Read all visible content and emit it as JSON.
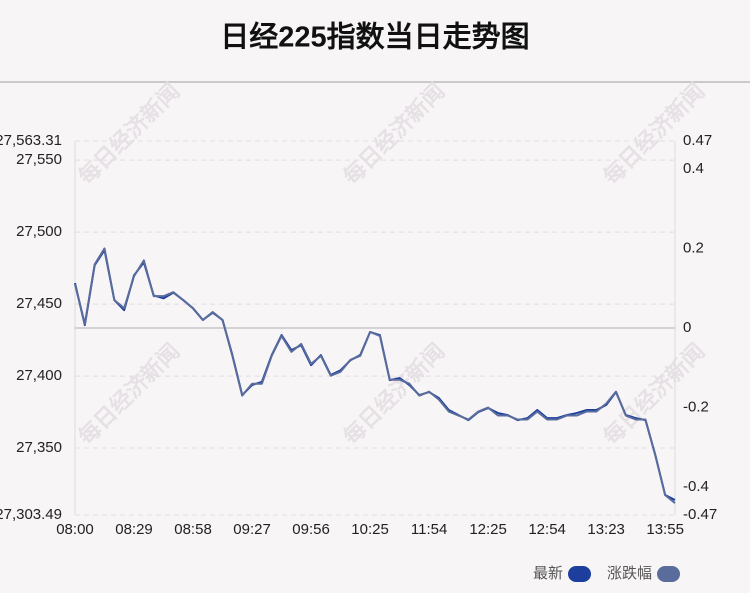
{
  "chart_data": {
    "type": "line",
    "title": "日经225指数当日走势图",
    "watermark": "每日经济新闻",
    "categories": [
      "08:00",
      null,
      null,
      null,
      null,
      null,
      "08:29",
      null,
      null,
      null,
      null,
      null,
      "08:58",
      null,
      null,
      null,
      null,
      null,
      "09:27",
      null,
      null,
      null,
      null,
      null,
      "09:56",
      null,
      null,
      null,
      null,
      null,
      "10:25",
      null,
      null,
      null,
      null,
      null,
      "11:54",
      null,
      null,
      null,
      null,
      null,
      "12:25",
      null,
      null,
      null,
      null,
      null,
      "12:54",
      null,
      null,
      null,
      null,
      null,
      "13:23",
      null,
      null,
      null,
      null,
      null,
      "13:55",
      null
    ],
    "series": [
      {
        "name": "最新",
        "color": "#1c3f9e",
        "values": [
          27464.6,
          27435.4,
          27477,
          27487.5,
          27452.8,
          27445.8,
          27470,
          27479,
          27456,
          27454,
          27458,
          27452.8,
          27447,
          27439,
          27444,
          27439,
          27414.6,
          27386.8,
          27393.8,
          27396,
          27414.6,
          27428.5,
          27418,
          27421.5,
          27407.6,
          27414.6,
          27400.7,
          27404,
          27411,
          27414.6,
          27430.6,
          27428.5,
          27397.2,
          27398.6,
          27393.8,
          27386.8,
          27388.9,
          27384.7,
          27376.4,
          27372.9,
          27369.4,
          27375,
          27377.8,
          27374.3,
          27372.9,
          27369.4,
          27370.8,
          27376.4,
          27370.8,
          27370.8,
          27372.9,
          27374.3,
          27376.4,
          27376.4,
          27379.9,
          27388.9,
          27372.9,
          27370.8,
          27369.4,
          27345.1,
          27317.4,
          27313.9
        ]
      },
      {
        "name": "涨跌幅",
        "color": "#5a6c9c",
        "axis": "y2",
        "values": [
          0.11,
          0.01,
          0.16,
          0.2,
          0.07,
          0.05,
          0.13,
          0.17,
          0.08,
          0.08,
          0.09,
          0.07,
          0.05,
          0.02,
          0.04,
          0.02,
          -0.07,
          -0.17,
          -0.14,
          -0.14,
          -0.07,
          -0.02,
          -0.06,
          -0.04,
          -0.09,
          -0.07,
          -0.12,
          -0.11,
          -0.08,
          -0.07,
          -0.01,
          -0.02,
          -0.13,
          -0.13,
          -0.14,
          -0.17,
          -0.16,
          -0.18,
          -0.21,
          -0.22,
          -0.23,
          -0.21,
          -0.2,
          -0.22,
          -0.22,
          -0.23,
          -0.23,
          -0.21,
          -0.23,
          -0.23,
          -0.22,
          -0.22,
          -0.21,
          -0.21,
          -0.19,
          -0.16,
          -0.22,
          -0.23,
          -0.23,
          -0.32,
          -0.42,
          -0.44
        ]
      }
    ],
    "ylim": [
      27303.49,
      27563.31
    ],
    "yticks": [
      {
        "value": 27303.49,
        "label": "27,303.49"
      },
      {
        "value": 27350,
        "label": "27,350"
      },
      {
        "value": 27400,
        "label": "27,400"
      },
      {
        "value": 27450,
        "label": "27,450"
      },
      {
        "value": 27500,
        "label": "27,500"
      },
      {
        "value": 27550,
        "label": "27,550"
      },
      {
        "value": 27563.31,
        "label": "27,563.31"
      }
    ],
    "y2lim": [
      -0.47,
      0.47
    ],
    "y2ticks": [
      -0.47,
      -0.4,
      -0.2,
      0,
      0.2,
      0.4,
      0.47
    ],
    "grid": true
  }
}
